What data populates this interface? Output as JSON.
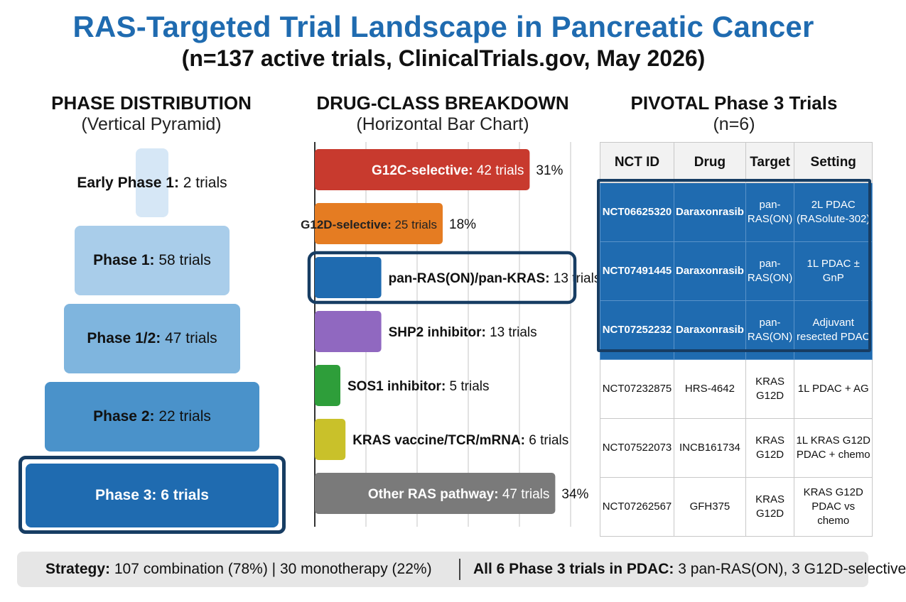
{
  "title": "RAS-Targeted Trial Landscape in Pancreatic Cancer",
  "subtitle": "(n=137 active trials, ClinicalTrials.gov, May 2026)",
  "chart_data": [
    {
      "type": "bar",
      "title": "PHASE DISTRIBUTION",
      "subtitle": "(Vertical Pyramid)",
      "categories": [
        "Early Phase 1",
        "Phase 1",
        "Phase 1/2",
        "Phase 2",
        "Phase 3"
      ],
      "values": [
        2,
        58,
        47,
        22,
        6
      ],
      "unit": "trials",
      "highlighted": "Phase 3",
      "colors": [
        "#d6e7f6",
        "#a9cdea",
        "#7fb5de",
        "#4a92ca",
        "#1f6bb0"
      ]
    },
    {
      "type": "bar",
      "orientation": "horizontal",
      "title": "DRUG-CLASS BREAKDOWN",
      "subtitle": "(Horizontal Bar Chart)",
      "categories": [
        "G12C-selective",
        "G12D-selective",
        "pan-RAS(ON)/pan-KRAS",
        "SHP2 inhibitor",
        "SOS1 inhibitor",
        "KRAS vaccine/TCR/mRNA",
        "Other RAS pathway"
      ],
      "values": [
        42,
        25,
        13,
        13,
        5,
        6,
        47
      ],
      "percent_labels": [
        "31%",
        "18%",
        "",
        "",
        "",
        "",
        "34%"
      ],
      "unit": "trials",
      "highlighted": "pan-RAS(ON)/pan-KRAS",
      "colors": [
        "#c83a2e",
        "#e57c22",
        "#1f6bb0",
        "#9068c0",
        "#2e9e3a",
        "#c9c12a",
        "#7a7a7a"
      ],
      "xlim": [
        0,
        50
      ]
    },
    {
      "type": "table",
      "title": "PIVOTAL Phase 3 Trials",
      "subtitle": "(n=6)",
      "columns": [
        "NCT ID",
        "Drug",
        "Target",
        "Setting"
      ],
      "rows": [
        {
          "nct": "NCT06625320",
          "drug": "Daraxonrasib",
          "target": [
            "pan-",
            "RAS(ON)"
          ],
          "setting": [
            "2L PDAC",
            "(RASolute-302)"
          ],
          "highlight": true
        },
        {
          "nct": "NCT07491445",
          "drug": "Daraxonrasib",
          "target": [
            "pan-",
            "RAS(ON)"
          ],
          "setting": [
            "1L PDAC ± GnP"
          ],
          "highlight": true
        },
        {
          "nct": "NCT07252232",
          "drug": "Daraxonrasib",
          "target": [
            "pan-",
            "RAS(ON)"
          ],
          "setting": [
            "Adjuvant",
            "resected PDAC"
          ],
          "highlight": true
        },
        {
          "nct": "NCT07232875",
          "drug": "HRS-4642",
          "target": [
            "KRAS",
            "G12D"
          ],
          "setting": [
            "1L PDAC + AG"
          ],
          "highlight": false
        },
        {
          "nct": "NCT07522073",
          "drug": "INCB161734",
          "target": [
            "KRAS",
            "G12D"
          ],
          "setting": [
            "1L KRAS G12D",
            "PDAC + chemo"
          ],
          "highlight": false
        },
        {
          "nct": "NCT07262567",
          "drug": "GFH375",
          "target": [
            "KRAS",
            "G12D"
          ],
          "setting": [
            "KRAS G12D",
            "PDAC vs chemo"
          ],
          "highlight": false
        }
      ]
    }
  ],
  "footer": {
    "strategy_label": "Strategy:",
    "strategy_text": " 107 combination (78%) | 30 monotherapy (22%)",
    "phase3_label": "All 6 Phase 3 trials in PDAC:",
    "phase3_text": " 3 pan-RAS(ON), 3 G12D-selective"
  }
}
